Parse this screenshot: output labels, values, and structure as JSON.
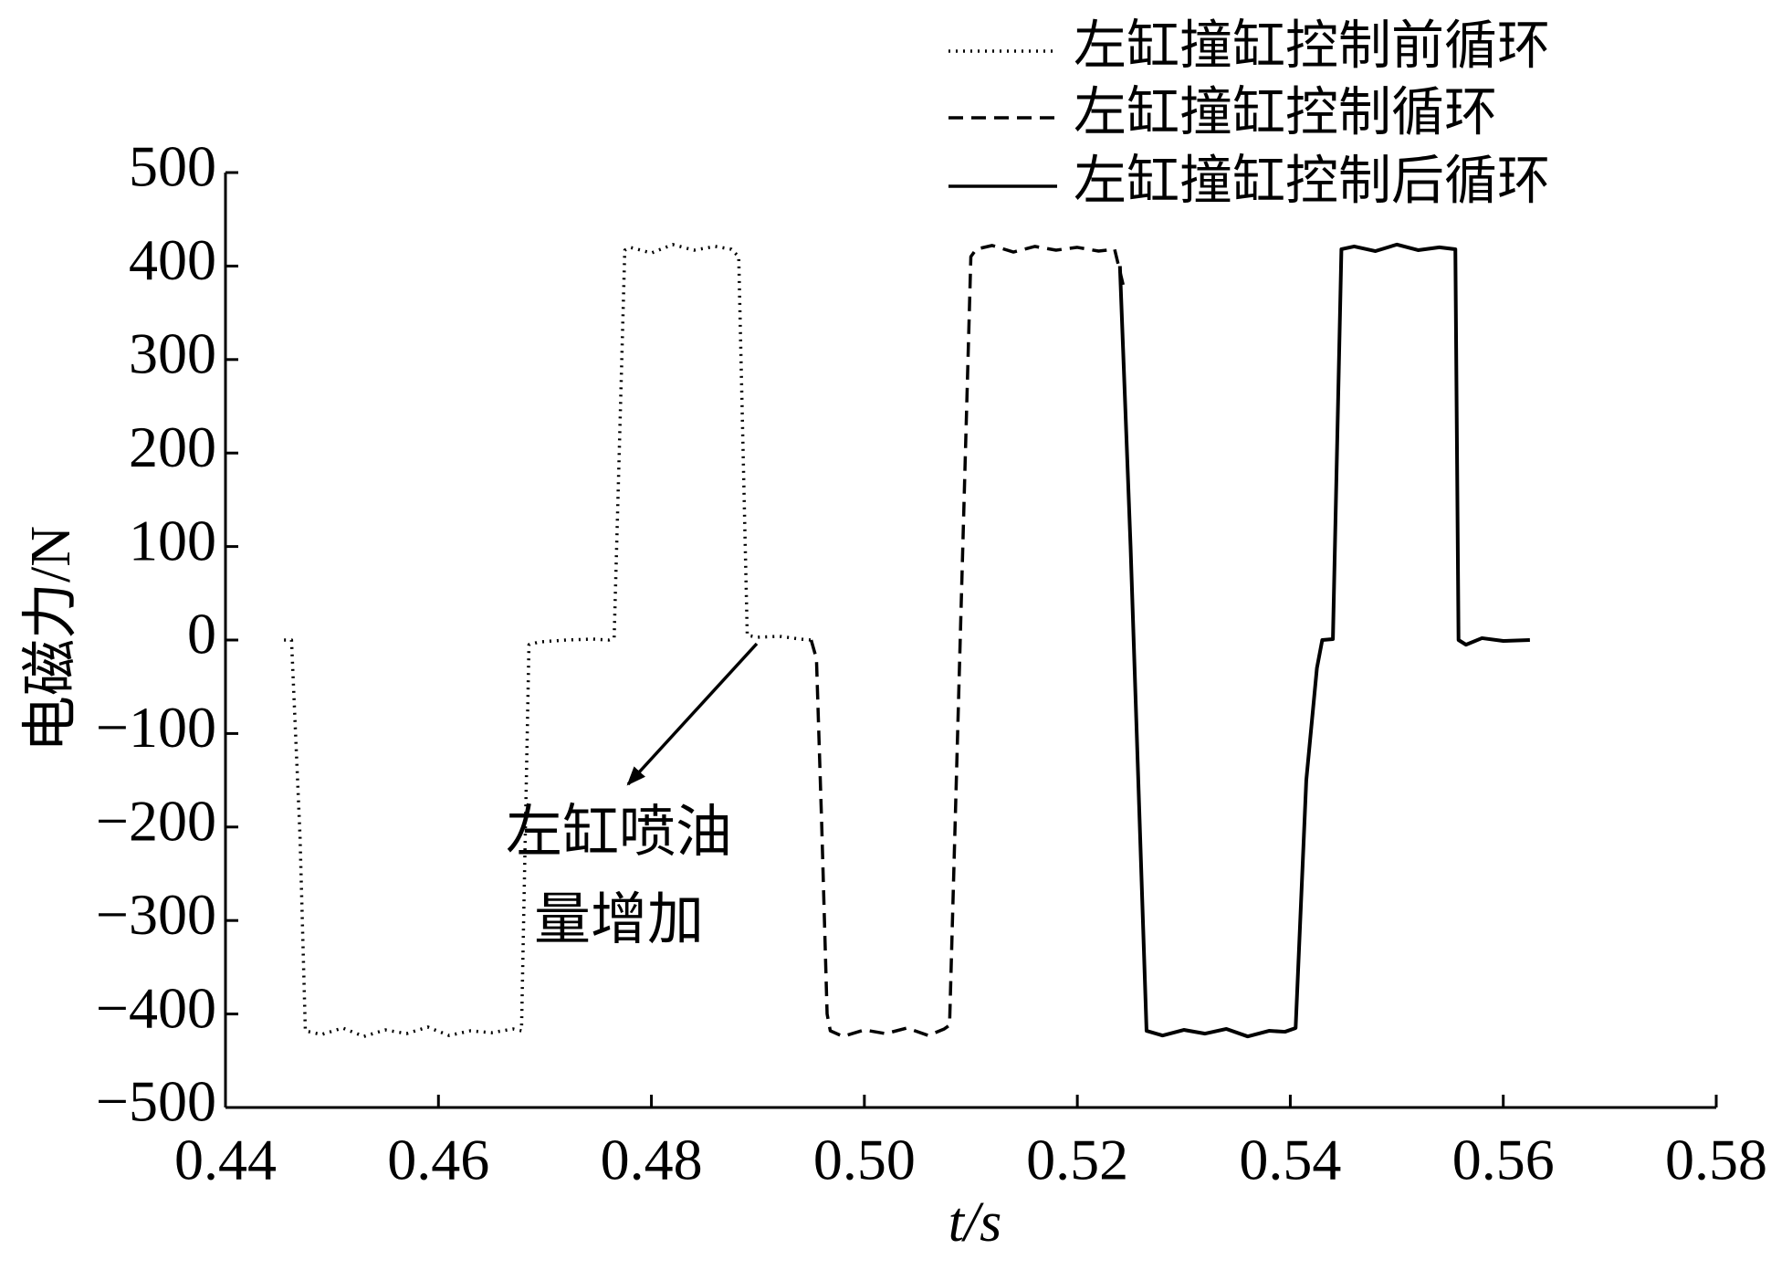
{
  "chart_data": {
    "type": "line",
    "x_label": "t/s",
    "y_label": "电磁力/N",
    "annotation_lines": [
      "左缸喷油",
      "量增加"
    ],
    "xlim": [
      0.44,
      0.58
    ],
    "xticks": [
      0.44,
      0.46,
      0.48,
      {
        "value": 0.5,
        "label": "0.50"
      },
      0.52,
      0.54,
      0.56,
      0.58
    ],
    "ylim": [
      -500,
      500
    ],
    "yticks": [
      {
        "value": -500,
        "label": "−500"
      },
      {
        "value": -400,
        "label": "−400"
      },
      {
        "value": -300,
        "label": "−300"
      },
      {
        "value": -200,
        "label": "−200"
      },
      {
        "value": -100,
        "label": "−100"
      },
      0,
      100,
      200,
      300,
      400,
      500
    ],
    "legend": "upper right",
    "series": [
      {
        "name": "左缸撞缸控制前循环",
        "color": "#000000",
        "line_style": "dotted",
        "x": [
          0.4455,
          0.4462,
          0.447,
          0.4475,
          0.449,
          0.451,
          0.453,
          0.455,
          0.457,
          0.459,
          0.461,
          0.463,
          0.465,
          0.467,
          0.4678,
          0.4685,
          0.4695,
          0.472,
          0.4745,
          0.476,
          0.4765,
          0.4775,
          0.478,
          0.48,
          0.482,
          0.484,
          0.486,
          0.4875,
          0.4882,
          0.489,
          0.49,
          0.492,
          0.494,
          0.495
        ],
        "values": [
          0,
          0,
          -210,
          -418,
          -422,
          -415,
          -424,
          -417,
          -421,
          -414,
          -423,
          -418,
          -420,
          -416,
          -418,
          -5,
          -2,
          0,
          1,
          0,
          2,
          417,
          420,
          414,
          423,
          417,
          421,
          418,
          410,
          5,
          3,
          4,
          1,
          0
        ]
      },
      {
        "name": "左缸撞缸控制循环",
        "color": "#000000",
        "line_style": "dashed",
        "x": [
          0.495,
          0.4955,
          0.496,
          0.4965,
          0.4968,
          0.498,
          0.5,
          0.502,
          0.504,
          0.506,
          0.5075,
          0.508,
          0.509,
          0.51,
          0.5105,
          0.512,
          0.514,
          0.516,
          0.518,
          0.52,
          0.522,
          0.5235,
          0.5243
        ],
        "values": [
          0,
          -20,
          -200,
          -400,
          -418,
          -424,
          -417,
          -421,
          -415,
          -423,
          -416,
          -412,
          0,
          410,
          418,
          422,
          415,
          421,
          417,
          420,
          416,
          418,
          380
        ]
      },
      {
        "name": "左缸撞缸控制后循环",
        "color": "#000000",
        "line_style": "solid",
        "x": [
          0.524,
          0.525,
          0.5265,
          0.528,
          0.53,
          0.532,
          0.534,
          0.536,
          0.538,
          0.5395,
          0.5405,
          0.5415,
          0.5425,
          0.543,
          0.544,
          0.5448,
          0.546,
          0.548,
          0.55,
          0.552,
          0.554,
          0.5555,
          0.5558,
          0.5565,
          0.558,
          0.56,
          0.5625
        ],
        "values": [
          400,
          100,
          -418,
          -423,
          -417,
          -421,
          -416,
          -424,
          -418,
          -419,
          -415,
          -150,
          -30,
          0,
          1,
          418,
          421,
          416,
          423,
          417,
          420,
          418,
          0,
          -5,
          2,
          -1,
          0
        ]
      }
    ]
  }
}
